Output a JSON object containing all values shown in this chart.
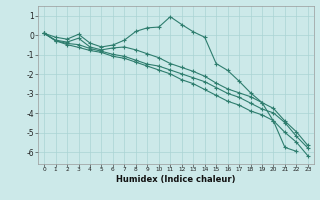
{
  "xlabel": "Humidex (Indice chaleur)",
  "bg_color": "#cce9e9",
  "grid_color": "#aad4d4",
  "line_color": "#2e7d6e",
  "xlim": [
    -0.5,
    23.5
  ],
  "ylim": [
    -6.6,
    1.5
  ],
  "yticks": [
    1,
    0,
    -1,
    -2,
    -3,
    -4,
    -5,
    -6
  ],
  "xtick_labels": [
    "0",
    "1",
    "2",
    "3",
    "4",
    "5",
    "6",
    "7",
    "8",
    "9",
    "1011",
    "1213",
    "1415",
    "1617",
    "1819",
    "2021",
    "2223"
  ],
  "series": [
    [
      0.1,
      -0.1,
      -0.2,
      0.05,
      -0.4,
      -0.6,
      -0.5,
      -0.25,
      0.2,
      0.38,
      0.42,
      0.95,
      0.55,
      0.18,
      -0.1,
      -1.45,
      -1.8,
      -2.35,
      -2.95,
      -3.45,
      -4.4,
      -5.75,
      -5.95,
      null
    ],
    [
      0.1,
      -0.25,
      -0.35,
      -0.15,
      -0.6,
      -0.75,
      -0.65,
      -0.6,
      -0.75,
      -0.95,
      -1.15,
      -1.45,
      -1.65,
      -1.85,
      -2.1,
      -2.45,
      -2.75,
      -2.95,
      -3.15,
      -3.45,
      -3.75,
      -4.4,
      -4.95,
      -5.65
    ],
    [
      0.1,
      -0.28,
      -0.42,
      -0.48,
      -0.68,
      -0.82,
      -0.98,
      -1.08,
      -1.28,
      -1.48,
      -1.58,
      -1.78,
      -1.98,
      -2.18,
      -2.38,
      -2.68,
      -2.98,
      -3.18,
      -3.48,
      -3.78,
      -3.98,
      -4.48,
      -5.18,
      -5.78
    ],
    [
      0.1,
      -0.28,
      -0.48,
      -0.62,
      -0.78,
      -0.88,
      -1.08,
      -1.18,
      -1.38,
      -1.58,
      -1.78,
      -1.98,
      -2.28,
      -2.48,
      -2.78,
      -3.08,
      -3.38,
      -3.58,
      -3.88,
      -4.08,
      -4.38,
      -4.98,
      -5.48,
      -6.18
    ]
  ]
}
